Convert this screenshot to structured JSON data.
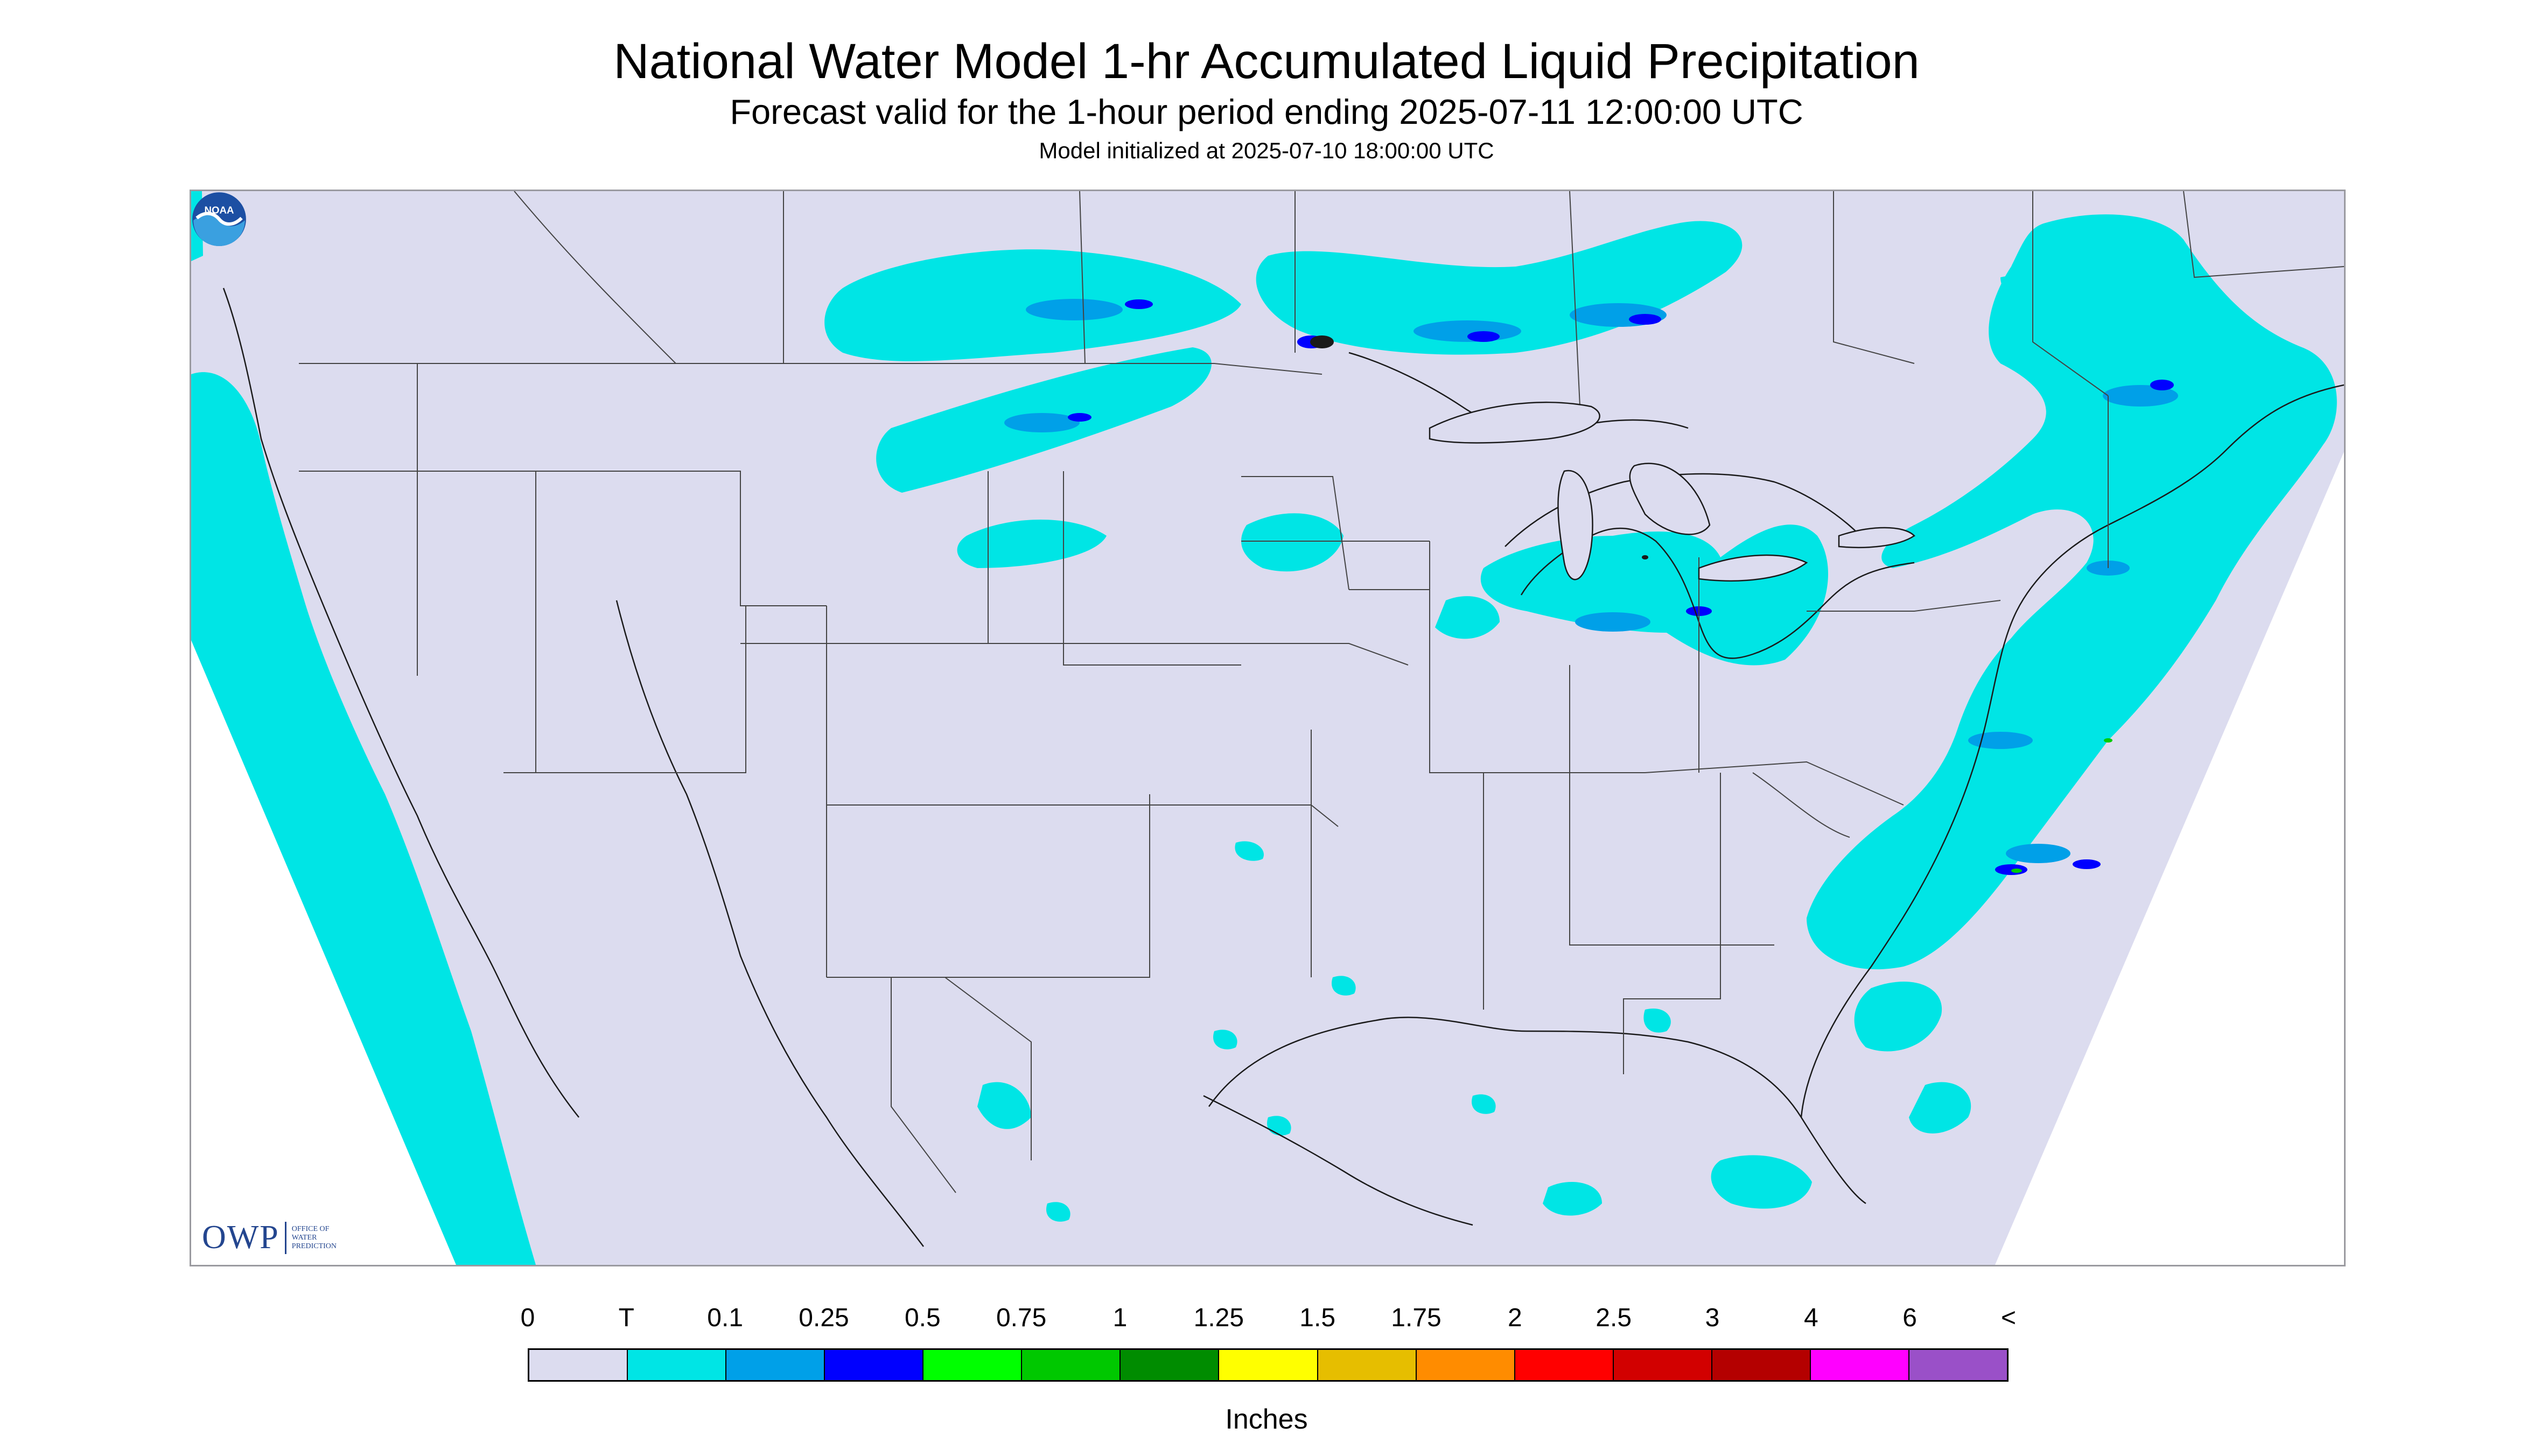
{
  "header": {
    "title": "National Water Model 1-hr Accumulated Liquid Precipitation",
    "subtitle": "Forecast valid for the 1-hour period ending 2025-07-11 12:00:00 UTC",
    "init": "Model initialized at 2025-07-10 18:00:00 UTC"
  },
  "map": {
    "background_color": "#dcdcef",
    "land_border_color": "#1a1a1a",
    "trace_color": "#00e5e5",
    "light_color": "#00a0e8",
    "heavy_color": "#0000ff",
    "green_color": "#00cc00"
  },
  "logos": {
    "owp_big": "OWP",
    "owp_small": "OFFICE OF\nWATER\nPREDICTION",
    "noaa_text": "NOAA"
  },
  "legend": {
    "labels": [
      "0",
      "T",
      "0.1",
      "0.25",
      "0.5",
      "0.75",
      "1",
      "1.25",
      "1.5",
      "1.75",
      "2",
      "2.5",
      "3",
      "4",
      "6",
      "<"
    ],
    "colors": [
      "#dcdcef",
      "#00e5e5",
      "#00a0e8",
      "#0000ff",
      "#00ff00",
      "#00c800",
      "#008c00",
      "#ffff00",
      "#e6be00",
      "#ff8c00",
      "#ff0000",
      "#d20000",
      "#b40000",
      "#ff00ff",
      "#9a50c8"
    ],
    "units": "Inches"
  }
}
